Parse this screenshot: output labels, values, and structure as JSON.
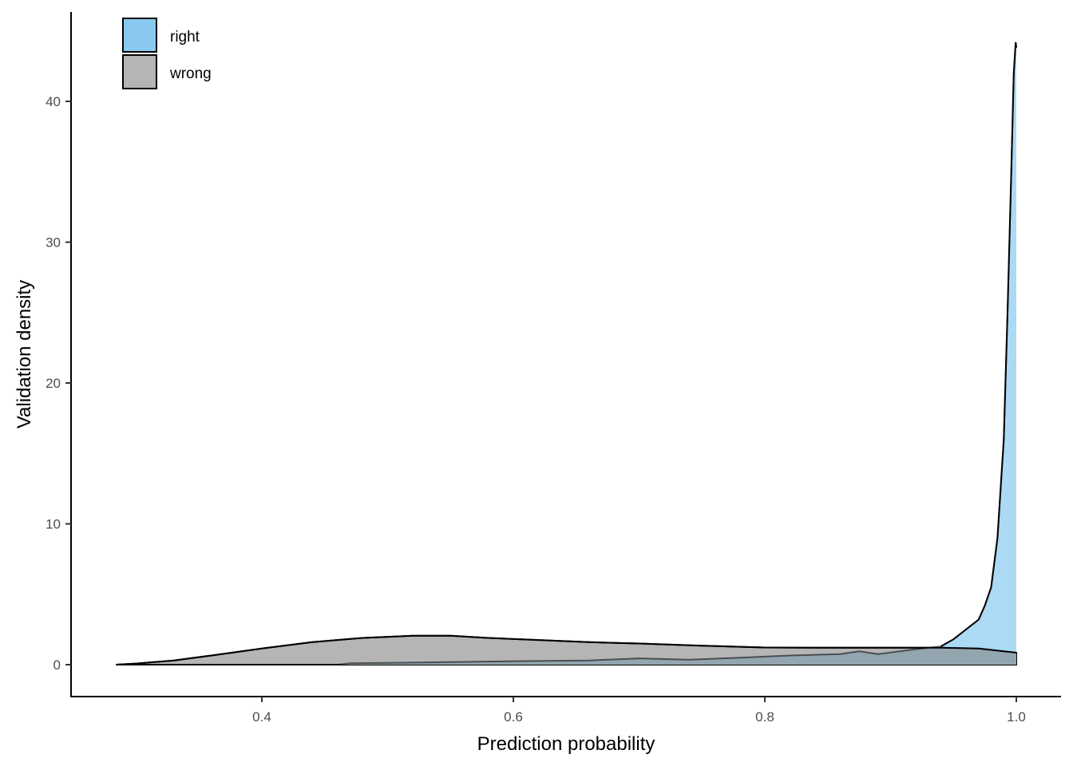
{
  "chart_data": {
    "type": "area",
    "subtype": "density",
    "title": "",
    "xlabel": "Prediction probability",
    "ylabel": "Validation density",
    "xlim": [
      0.248,
      1.036
    ],
    "ylim": [
      -2.2,
      46.5
    ],
    "x_ticks": [
      0.4,
      0.6,
      0.8,
      1.0
    ],
    "x_tick_labels": [
      "0.4",
      "0.6",
      "0.8",
      "1.0"
    ],
    "y_ticks": [
      0,
      10,
      20,
      30,
      40
    ],
    "y_tick_labels": [
      "0",
      "10",
      "20",
      "30",
      "40"
    ],
    "grid": false,
    "legend_position": "top-left inside",
    "series": [
      {
        "name": "right",
        "color": "#89C9EF",
        "x": [
          0.284,
          0.46,
          0.47,
          0.52,
          0.6,
          0.66,
          0.7,
          0.74,
          0.78,
          0.82,
          0.86,
          0.875,
          0.89,
          0.92,
          0.94,
          0.95,
          0.96,
          0.97,
          0.975,
          0.98,
          0.985,
          0.99,
          0.993,
          0.996,
          0.998,
          0.9995,
          1.0
        ],
        "values": [
          0,
          0,
          0.1,
          0.15,
          0.25,
          0.3,
          0.45,
          0.35,
          0.5,
          0.65,
          0.75,
          0.95,
          0.75,
          1.1,
          1.3,
          1.8,
          2.5,
          3.2,
          4.2,
          5.5,
          9,
          16,
          25,
          35,
          42,
          44.2,
          43.8
        ]
      },
      {
        "name": "wrong",
        "color": "#B5B5B5",
        "x": [
          0.284,
          0.3,
          0.33,
          0.36,
          0.4,
          0.44,
          0.48,
          0.52,
          0.55,
          0.58,
          0.62,
          0.66,
          0.7,
          0.75,
          0.8,
          0.85,
          0.9,
          0.94,
          0.97,
          1.0
        ],
        "values": [
          0,
          0.08,
          0.3,
          0.65,
          1.15,
          1.6,
          1.9,
          2.05,
          2.05,
          1.9,
          1.75,
          1.6,
          1.5,
          1.35,
          1.22,
          1.2,
          1.2,
          1.2,
          1.15,
          0.85
        ]
      }
    ],
    "legend": [
      {
        "label": "right",
        "color": "#89C9EF"
      },
      {
        "label": "wrong",
        "color": "#B5B5B5"
      }
    ]
  },
  "style": {
    "overlap_color": "#93A5AF",
    "axis_color": "#000000",
    "tick_text_color": "#4d4d4d",
    "alpha": 0.7
  }
}
